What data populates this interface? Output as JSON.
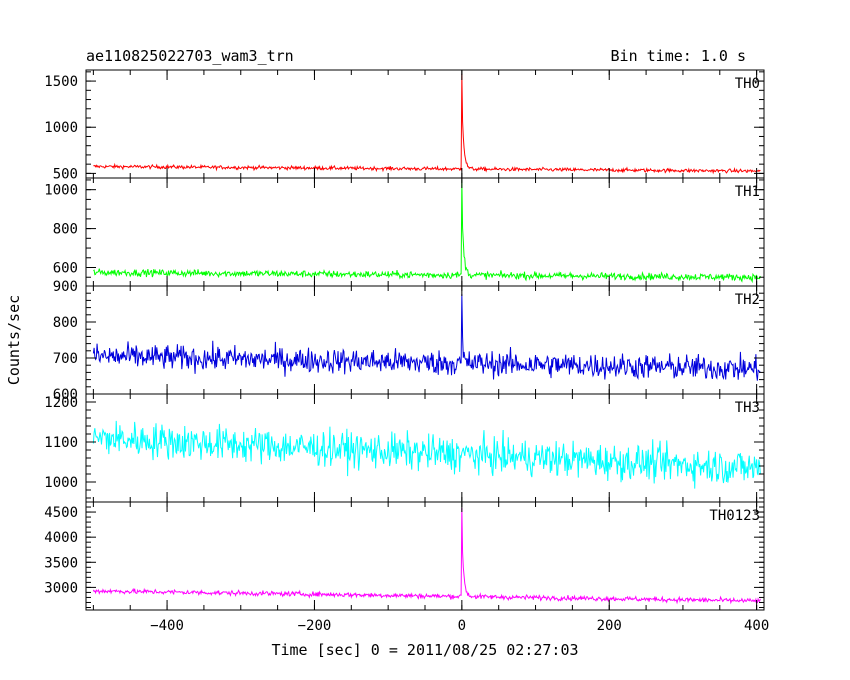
{
  "header": {
    "title": "ae110825022703_wam3_trn",
    "bin_time": "Bin time: 1.0 s"
  },
  "chart_data": {
    "type": "line",
    "xlabel": "Time [sec] 0 = 2011/08/25 02:27:03",
    "ylabel": "Counts/sec",
    "xlim": [
      -510,
      410
    ],
    "x_ticks": [
      -400,
      -200,
      0,
      200,
      400
    ],
    "x_tick_labels": [
      "−400",
      "−200",
      "0",
      "200",
      "400"
    ],
    "panels": [
      {
        "name": "TH0",
        "color": "#ff0000",
        "ylim": [
          450,
          1620
        ],
        "y_ticks": [
          500,
          1000,
          1500
        ],
        "y_tick_labels": [
          "500",
          "1000",
          "1500"
        ],
        "y_minor_step": 100,
        "baseline_start": 575,
        "baseline_end": 525,
        "noise": 30,
        "peak": 1620,
        "decay": 2.5
      },
      {
        "name": "TH1",
        "color": "#00ff00",
        "ylim": [
          505,
          1060
        ],
        "y_ticks": [
          600,
          800,
          1000
        ],
        "y_tick_labels": [
          "600",
          "800",
          "1000"
        ],
        "y_minor_step": 50,
        "baseline_start": 575,
        "baseline_end": 550,
        "noise": 28,
        "peak": 1060,
        "decay": 2.5
      },
      {
        "name": "TH2",
        "color": "#0000dd",
        "ylim": [
          600,
          900
        ],
        "y_ticks": [
          600,
          700,
          800,
          900
        ],
        "y_tick_labels": [
          "600",
          "700",
          "800",
          "900"
        ],
        "y_minor_step": 20,
        "baseline_start": 705,
        "baseline_end": 670,
        "noise": 55,
        "peak": 880,
        "decay": 1.2
      },
      {
        "name": "TH3",
        "color": "#00ffff",
        "ylim": [
          950,
          1220
        ],
        "y_ticks": [
          1000,
          1100,
          1200
        ],
        "y_tick_labels": [
          "1000",
          "1100",
          "1200"
        ],
        "y_minor_step": 20,
        "baseline_start": 1110,
        "baseline_end": 1035,
        "noise": 70,
        "peak": 1130,
        "decay": 1.0
      },
      {
        "name": "TH0123",
        "color": "#ff00ff",
        "ylim": [
          2550,
          4700
        ],
        "y_ticks": [
          3000,
          3500,
          4000,
          4500
        ],
        "y_tick_labels": [
          "3000",
          "3500",
          "4000",
          "4500"
        ],
        "y_minor_step": 100,
        "baseline_start": 2930,
        "baseline_end": 2730,
        "noise": 75,
        "peak": 4700,
        "decay": 2.5
      }
    ]
  }
}
